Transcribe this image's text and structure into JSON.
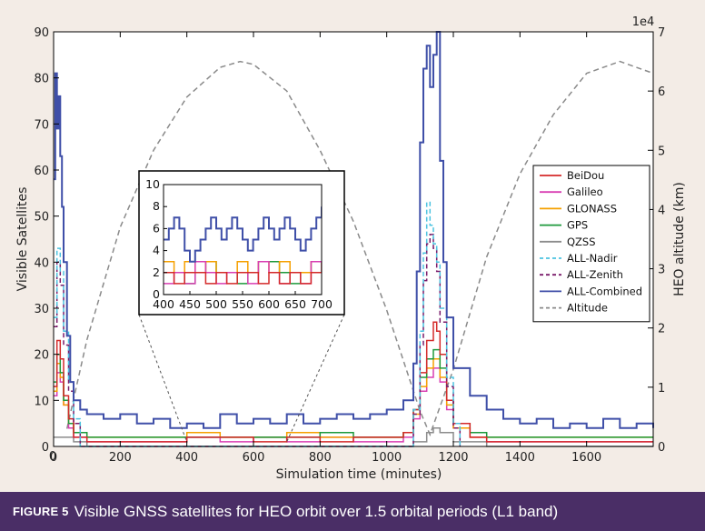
{
  "chart_data": [
    {
      "type": "line",
      "title": "",
      "xlabel": "Simulation time (minutes)",
      "ylabel": "Visible Satellites",
      "y2label": "HEO altitude (km)",
      "y2_scale_label": "1e4",
      "xlim": [
        0,
        1800
      ],
      "ylim": [
        0,
        90
      ],
      "y2lim": [
        0,
        7
      ],
      "xticks": [
        0,
        200,
        400,
        600,
        800,
        1000,
        1200,
        1400,
        1600
      ],
      "yticks": [
        0,
        10,
        20,
        30,
        40,
        50,
        60,
        70,
        80,
        90
      ],
      "y2ticks": [
        0,
        1,
        2,
        3,
        4,
        5,
        6,
        7
      ],
      "extra_tick_label": "0",
      "legend_position": "center-right",
      "series": [
        {
          "name": "BeiDou",
          "color": "#d42a2a",
          "style": "solid",
          "x": [
            0,
            10,
            20,
            30,
            45,
            60,
            100,
            200,
            300,
            400,
            500,
            600,
            700,
            800,
            900,
            1000,
            1050,
            1080,
            1100,
            1120,
            1140,
            1150,
            1160,
            1180,
            1200,
            1250,
            1300,
            1400,
            1500,
            1600,
            1700,
            1800
          ],
          "y": [
            13,
            23,
            19,
            11,
            6,
            2,
            1,
            1,
            1,
            2,
            2,
            1,
            2,
            1,
            2,
            2,
            3,
            8,
            16,
            23,
            27,
            25,
            20,
            10,
            5,
            2,
            1,
            1,
            1,
            1,
            1,
            1
          ]
        },
        {
          "name": "Galileo",
          "color": "#d93fb3",
          "style": "solid",
          "x": [
            0,
            10,
            20,
            30,
            45,
            60,
            100,
            200,
            300,
            400,
            500,
            600,
            700,
            800,
            900,
            1000,
            1050,
            1080,
            1100,
            1120,
            1140,
            1160,
            1180,
            1200,
            1250,
            1300,
            1400,
            1500,
            1600,
            1700,
            1800
          ],
          "y": [
            11,
            16,
            14,
            9,
            4,
            2,
            1,
            1,
            1,
            2,
            1,
            2,
            1,
            2,
            1,
            1,
            2,
            6,
            12,
            15,
            17,
            14,
            8,
            4,
            2,
            1,
            1,
            1,
            1,
            1,
            1
          ]
        },
        {
          "name": "GLONASS",
          "color": "#f5a000",
          "style": "solid",
          "x": [
            0,
            10,
            20,
            30,
            45,
            60,
            100,
            200,
            300,
            400,
            500,
            600,
            700,
            800,
            900,
            1000,
            1050,
            1080,
            1100,
            1120,
            1140,
            1160,
            1180,
            1200,
            1250,
            1300,
            1400,
            1500,
            1600,
            1700,
            1800
          ],
          "y": [
            12,
            18,
            15,
            9,
            5,
            3,
            2,
            2,
            2,
            3,
            2,
            2,
            3,
            2,
            2,
            2,
            3,
            7,
            13,
            17,
            19,
            15,
            9,
            4,
            2,
            2,
            2,
            2,
            2,
            2,
            2
          ]
        },
        {
          "name": "GPS",
          "color": "#1e9a3c",
          "style": "solid",
          "x": [
            0,
            10,
            20,
            30,
            45,
            60,
            100,
            200,
            300,
            400,
            500,
            600,
            700,
            800,
            900,
            1000,
            1050,
            1080,
            1100,
            1120,
            1140,
            1160,
            1180,
            1200,
            1250,
            1300,
            1400,
            1500,
            1600,
            1700,
            1800
          ],
          "y": [
            14,
            20,
            16,
            10,
            5,
            3,
            2,
            2,
            2,
            2,
            2,
            2,
            2,
            3,
            2,
            2,
            3,
            8,
            15,
            19,
            21,
            17,
            10,
            5,
            3,
            2,
            2,
            2,
            2,
            2,
            2
          ]
        },
        {
          "name": "QZSS",
          "color": "#8c8c8c",
          "style": "solid",
          "x": [
            0,
            30,
            60,
            100,
            200,
            300,
            400,
            500,
            600,
            700,
            800,
            900,
            1000,
            1080,
            1120,
            1140,
            1160,
            1200,
            1300,
            1400,
            1500,
            1600,
            1700,
            1800
          ],
          "y": [
            2,
            2,
            1,
            0,
            0,
            0,
            0,
            0,
            0,
            0,
            0,
            0,
            0,
            1,
            3,
            4,
            3,
            1,
            0,
            0,
            0,
            0,
            0,
            0
          ]
        },
        {
          "name": "ALL-Nadir",
          "color": "#4cc3e0",
          "style": "dashed",
          "x": [
            0,
            10,
            20,
            30,
            45,
            60,
            80,
            1060,
            1080,
            1100,
            1110,
            1120,
            1130,
            1140,
            1150,
            1160,
            1180,
            1200,
            1220
          ],
          "y": [
            28,
            43,
            38,
            25,
            14,
            6,
            0,
            0,
            8,
            25,
            42,
            53,
            48,
            44,
            40,
            30,
            15,
            5,
            0
          ]
        },
        {
          "name": "ALL-Zenith",
          "color": "#7a1b6a",
          "style": "dashed",
          "x": [
            0,
            10,
            20,
            30,
            45,
            60,
            80,
            1060,
            1080,
            1100,
            1110,
            1120,
            1130,
            1140,
            1150,
            1160,
            1180,
            1200,
            1220
          ],
          "y": [
            26,
            40,
            35,
            22,
            12,
            5,
            0,
            0,
            7,
            22,
            36,
            44,
            46,
            43,
            38,
            27,
            13,
            4,
            0
          ]
        },
        {
          "name": "ALL-Combined",
          "color": "#3f4fa8",
          "style": "solid",
          "x": [
            0,
            5,
            10,
            15,
            20,
            25,
            30,
            40,
            50,
            60,
            80,
            100,
            150,
            200,
            250,
            300,
            350,
            400,
            450,
            500,
            550,
            600,
            650,
            700,
            750,
            800,
            850,
            900,
            950,
            1000,
            1050,
            1080,
            1090,
            1100,
            1110,
            1120,
            1130,
            1140,
            1150,
            1160,
            1170,
            1180,
            1200,
            1250,
            1300,
            1350,
            1400,
            1450,
            1500,
            1550,
            1600,
            1650,
            1700,
            1750,
            1800
          ],
          "y": [
            58,
            81,
            69,
            76,
            63,
            52,
            40,
            24,
            14,
            10,
            8,
            7,
            6,
            7,
            5,
            6,
            4,
            5,
            4,
            7,
            5,
            6,
            5,
            7,
            5,
            6,
            7,
            6,
            7,
            8,
            10,
            18,
            38,
            66,
            82,
            87,
            78,
            85,
            90,
            62,
            40,
            28,
            17,
            11,
            8,
            6,
            5,
            6,
            4,
            5,
            4,
            6,
            4,
            5,
            4
          ]
        },
        {
          "name": "Altitude",
          "color": "#8a8a8a",
          "style": "dashed",
          "axis": "right",
          "x": [
            40,
            100,
            200,
            300,
            400,
            500,
            560,
            600,
            700,
            800,
            900,
            1000,
            1100,
            1130,
            1200,
            1300,
            1400,
            1500,
            1600,
            1700,
            1800
          ],
          "y": [
            0.3,
            1.8,
            3.7,
            5.0,
            5.9,
            6.4,
            6.5,
            6.45,
            6.0,
            5.0,
            3.8,
            2.3,
            0.6,
            0.2,
            1.3,
            3.2,
            4.6,
            5.6,
            6.3,
            6.5,
            6.3
          ]
        }
      ]
    },
    {
      "type": "line",
      "title": "",
      "xlim": [
        400,
        700
      ],
      "ylim": [
        0,
        10
      ],
      "xticks": [
        400,
        450,
        500,
        550,
        600,
        650,
        700
      ],
      "yticks": [
        0,
        2,
        4,
        6,
        8,
        10
      ],
      "series": [
        {
          "name": "ALL-Combined",
          "color": "#3f4fa8",
          "x": [
            400,
            410,
            420,
            430,
            440,
            450,
            460,
            470,
            480,
            490,
            500,
            510,
            520,
            530,
            540,
            550,
            560,
            570,
            580,
            590,
            600,
            610,
            620,
            630,
            640,
            650,
            660,
            670,
            680,
            690,
            700
          ],
          "y": [
            5,
            6,
            7,
            6,
            4,
            3,
            4,
            5,
            6,
            7,
            6,
            5,
            6,
            7,
            6,
            5,
            4,
            5,
            6,
            7,
            6,
            5,
            6,
            7,
            6,
            5,
            4,
            5,
            6,
            7,
            8
          ]
        },
        {
          "name": "BeiDou",
          "color": "#d42a2a",
          "x": [
            400,
            420,
            440,
            460,
            480,
            500,
            520,
            540,
            560,
            580,
            600,
            620,
            640,
            660,
            680,
            700
          ],
          "y": [
            2,
            1,
            2,
            2,
            1,
            2,
            1,
            2,
            2,
            1,
            2,
            1,
            2,
            1,
            2,
            2
          ]
        },
        {
          "name": "Galileo",
          "color": "#d93fb3",
          "x": [
            400,
            420,
            440,
            460,
            480,
            500,
            520,
            540,
            560,
            580,
            600,
            620,
            640,
            660,
            680,
            700
          ],
          "y": [
            1,
            2,
            1,
            3,
            2,
            1,
            2,
            2,
            1,
            3,
            2,
            1,
            2,
            1,
            3,
            2
          ]
        },
        {
          "name": "GLONASS",
          "color": "#f5a000",
          "x": [
            400,
            420,
            440,
            460,
            480,
            500,
            520,
            540,
            560,
            580,
            600,
            620,
            640,
            660,
            680,
            700
          ],
          "y": [
            3,
            2,
            3,
            2,
            3,
            2,
            2,
            3,
            2,
            3,
            2,
            3,
            2,
            2,
            3,
            2
          ]
        },
        {
          "name": "GPS",
          "color": "#1e9a3c",
          "x": [
            400,
            420,
            440,
            460,
            480,
            500,
            520,
            540,
            560,
            580,
            600,
            620,
            640,
            660,
            680,
            700
          ],
          "y": [
            2,
            2,
            1,
            2,
            3,
            2,
            2,
            1,
            2,
            3,
            3,
            2,
            1,
            2,
            3,
            2
          ]
        },
        {
          "name": "QZSS",
          "color": "#8c8c8c",
          "x": [
            400,
            700
          ],
          "y": [
            0,
            0
          ]
        }
      ]
    }
  ],
  "caption": {
    "label": "FIGURE 5",
    "text": "Visible GNSS satellites for HEO orbit over 1.5 orbital periods (L1 band)"
  }
}
